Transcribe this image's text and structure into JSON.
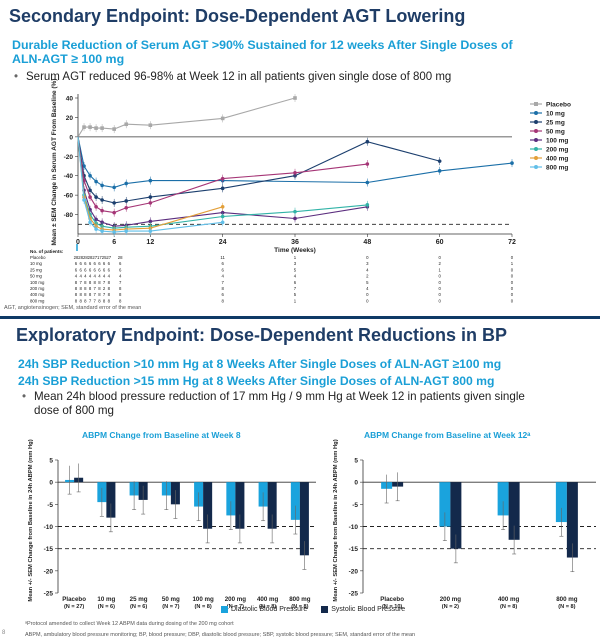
{
  "slide1": {
    "title": "Secondary Endpoint: Dose-Dependent AGT Lowering",
    "subtitle_line1": "Durable Reduction of Serum AGT >90% Sustained for 12 weeks After Single Doses of",
    "subtitle_line2": "ALN-AGT ≥ 100 mg",
    "bullet": "Serum AGT reduced 96-98% at Week 12 in all patients given single dose of 800 mg",
    "footnote": "AGT, angiotensinogen; SEM, standard error of the mean",
    "patients_label": "No. of patients:"
  },
  "slide2": {
    "title": "Exploratory Endpoint: Dose-Dependent Reductions in BP",
    "subtitle_line1": "24h SBP Reduction >10 mm Hg at 8 Weeks After Single Doses of ALN-AGT ≥100 mg",
    "subtitle_line2": "24h SBP Reduction >15 mm Hg at 8 Weeks After Single Doses of ALN-AGT 800 mg",
    "bullet_line1": "Mean 24h blood pressure reduction of 17 mm Hg / 9 mm Hg at Week 12 in patients given single",
    "bullet_line2": "dose of 800 mg",
    "legend": {
      "dbp": "Diastolic Blood Pressure",
      "sbp": "Systolic Blood Pressure"
    },
    "footnote1": "ᵃProtocol amended to collect Week 12 ABPM data during dosing of the 200 mg cohort",
    "footnote2": "ABPM, ambulatory blood pressure monitoring; BP, blood pressure; DBP, diastolic blood pressure; SBP, systolic blood pressure; SEM, standard error of the mean",
    "page_number": "8"
  },
  "colors": {
    "title": "#1f3d66",
    "accent": "#1a9fd6",
    "dbp": "#1aa3dd",
    "sbp": "#13294b"
  },
  "chart_data": [
    {
      "type": "line",
      "title": "",
      "xlabel": "Time (Weeks)",
      "ylabel": "Mean ± SEM Change in Serum AGT From Baseline (%)",
      "xlim": [
        0,
        72
      ],
      "ylim": [
        -100,
        40
      ],
      "x_ticks": [
        0,
        6,
        12,
        24,
        36,
        48,
        60,
        72
      ],
      "x_tick_labels": [
        "0",
        "6",
        "12",
        "24",
        "36",
        "48",
        "60",
        "72"
      ],
      "y_ticks": [
        40,
        20,
        0,
        -20,
        -40,
        -60,
        -80
      ],
      "y_tick_labels": [
        "40",
        "20",
        "0",
        "-20",
        "-40",
        "-60",
        "-80"
      ],
      "reference_line": -90,
      "legend_position": "right",
      "series": [
        {
          "name": "Placebo",
          "color": "#a8a8a8",
          "marker": "square",
          "x": [
            0,
            1,
            2,
            3,
            4,
            6,
            8,
            12,
            24,
            36
          ],
          "y": [
            0,
            10,
            10,
            9,
            9,
            8,
            13,
            12,
            19,
            40
          ]
        },
        {
          "name": "10 mg",
          "color": "#1b6fa8",
          "marker": "circle",
          "x": [
            0,
            1,
            2,
            3,
            4,
            6,
            8,
            12,
            24,
            48,
            60,
            72
          ],
          "y": [
            0,
            -30,
            -40,
            -46,
            -50,
            -52,
            -48,
            -45,
            -45,
            -47,
            -35,
            -27
          ]
        },
        {
          "name": "25 mg",
          "color": "#1c3f6e",
          "marker": "circle",
          "x": [
            0,
            1,
            2,
            3,
            4,
            6,
            8,
            12,
            24,
            36,
            48,
            60
          ],
          "y": [
            0,
            -40,
            -55,
            -62,
            -65,
            -68,
            -66,
            -62,
            -53,
            -40,
            -5,
            -25
          ]
        },
        {
          "name": "50 mg",
          "color": "#a53576",
          "marker": "circle",
          "x": [
            0,
            1,
            2,
            3,
            4,
            6,
            8,
            12,
            24,
            36,
            48
          ],
          "y": [
            0,
            -45,
            -62,
            -72,
            -76,
            -78,
            -73,
            -68,
            -43,
            -37,
            -28
          ]
        },
        {
          "name": "100 mg",
          "color": "#5b2d7e",
          "marker": "circle",
          "x": [
            0,
            1,
            2,
            3,
            4,
            6,
            8,
            12,
            24,
            36,
            48
          ],
          "y": [
            0,
            -55,
            -75,
            -85,
            -88,
            -92,
            -91,
            -87,
            -78,
            -84,
            -72
          ]
        },
        {
          "name": "200 mg",
          "color": "#31b3a7",
          "marker": "circle",
          "x": [
            0,
            1,
            2,
            3,
            4,
            6,
            8,
            12,
            24,
            36,
            48
          ],
          "y": [
            0,
            -60,
            -80,
            -89,
            -92,
            -94,
            -93,
            -92,
            -82,
            -77,
            -70
          ]
        },
        {
          "name": "400 mg",
          "color": "#e3a03a",
          "marker": "circle",
          "x": [
            0,
            1,
            2,
            3,
            4,
            6,
            8,
            12,
            24
          ],
          "y": [
            0,
            -62,
            -84,
            -92,
            -95,
            -96,
            -95,
            -94,
            -72
          ]
        },
        {
          "name": "800 mg",
          "color": "#62bfe8",
          "marker": "circle",
          "x": [
            0,
            1,
            2,
            3,
            4,
            6,
            8,
            12,
            24
          ],
          "y": [
            0,
            -65,
            -88,
            -95,
            -97,
            -98,
            -97,
            -97,
            -88
          ]
        }
      ],
      "patients_table": {
        "rows": [
          {
            "label": "Placebo",
            "values": [
              "28",
              "28",
              "28",
              "28",
              "27",
              "17",
              "25",
              "27",
              "",
              "28",
              "",
              "11",
              "",
              "1",
              "",
              "0",
              "",
              "0",
              "",
              "0"
            ]
          },
          {
            "label": "10 mg",
            "values": [
              "6",
              "6",
              "6",
              "6",
              "6",
              "6",
              "6",
              "6",
              "",
              "6",
              "",
              "6",
              "",
              "3",
              "",
              "3",
              "",
              "2",
              "",
              "1"
            ]
          },
          {
            "label": "25 mg",
            "values": [
              "6",
              "6",
              "6",
              "6",
              "6",
              "6",
              "6",
              "6",
              "",
              "6",
              "",
              "6",
              "",
              "5",
              "",
              "4",
              "",
              "1",
              "",
              "0"
            ]
          },
          {
            "label": "50 mg",
            "values": [
              "4",
              "4",
              "4",
              "4",
              "4",
              "4",
              "4",
              "4",
              "",
              "4",
              "",
              "4",
              "",
              "4",
              "",
              "2",
              "",
              "0",
              "",
              "0"
            ]
          },
          {
            "label": "100 mg",
            "values": [
              "8",
              "7",
              "8",
              "8",
              "8",
              "8",
              "7",
              "8",
              "",
              "7",
              "",
              "7",
              "",
              "6",
              "",
              "5",
              "",
              "0",
              "",
              "0"
            ]
          },
          {
            "label": "200 mg",
            "values": [
              "8",
              "8",
              "8",
              "8",
              "7",
              "8",
              "2",
              "8",
              "",
              "8",
              "",
              "8",
              "",
              "7",
              "",
              "4",
              "",
              "0",
              "",
              "0"
            ]
          },
          {
            "label": "400 mg",
            "values": [
              "8",
              "8",
              "8",
              "8",
              "7",
              "8",
              "7",
              "8",
              "",
              "8",
              "",
              "6",
              "",
              "5",
              "",
              "0",
              "",
              "0",
              "",
              "0"
            ]
          },
          {
            "label": "800 mg",
            "values": [
              "8",
              "8",
              "8",
              "7",
              "7",
              "8",
              "8",
              "8",
              "",
              "8",
              "",
              "8",
              "",
              "1",
              "",
              "0",
              "",
              "0",
              "",
              "0"
            ]
          }
        ]
      }
    },
    {
      "type": "bar",
      "title": "ABPM Change from Baseline at Week 8",
      "ylabel": "Mean +/- SEM Change from Baseline in 24h ABPM (mm Hg)",
      "ylim": [
        -25,
        5
      ],
      "y_ticks": [
        5,
        0,
        -5,
        -10,
        -15,
        -20,
        -25
      ],
      "reference_lines": [
        -10,
        -15
      ],
      "categories": [
        "Placebo\n(N = 27)",
        "10 mg\n(N = 6)",
        "25 mg\n(N = 6)",
        "50 mg\n(N = 7)",
        "100 mg\n(N = 8)",
        "200 mg\n(N = 7)",
        "400 mg\n(N = 8)",
        "800 mg\n(N = 8)"
      ],
      "series": [
        {
          "name": "Diastolic Blood Pressure",
          "values": [
            0.5,
            -4.5,
            -3,
            -3,
            -5.5,
            -7.5,
            -5.5,
            -8.5
          ]
        },
        {
          "name": "Systolic Blood Pressure",
          "values": [
            1,
            -8,
            -4,
            -5,
            -10.5,
            -10.5,
            -10.5,
            -16.5
          ]
        }
      ]
    },
    {
      "type": "bar",
      "title": "ABPM Change from Baseline at Week 12ᵃ",
      "ylabel": "Mean +/- SEM Change from Baseline in 24h ABPM (mm Hg)",
      "ylim": [
        -25,
        5
      ],
      "y_ticks": [
        5,
        0,
        -5,
        -10,
        -15,
        -20,
        -25
      ],
      "reference_lines": [
        -10,
        -15
      ],
      "categories": [
        "Placebo\n(N = 10)",
        "200 mg\n(N = 2)",
        "400 mg\n(N = 8)",
        "800 mg\n(N = 8)"
      ],
      "series": [
        {
          "name": "Diastolic Blood Pressure",
          "values": [
            -1.5,
            -10,
            -7.5,
            -9
          ]
        },
        {
          "name": "Systolic Blood Pressure",
          "values": [
            -1,
            -15,
            -13,
            -17
          ]
        }
      ]
    }
  ]
}
